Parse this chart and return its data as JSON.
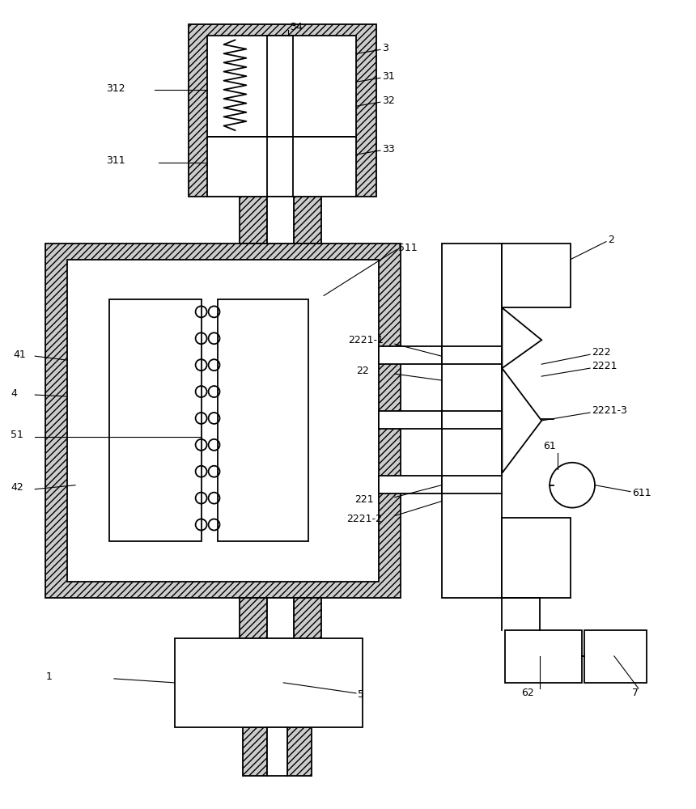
{
  "bg_color": "#ffffff",
  "line_color": "#000000",
  "hatch_color": "#aaaaaa",
  "label_color": "#000000",
  "figsize": [
    8.6,
    10.0
  ],
  "dpi": 100,
  "hatch_pattern": "////",
  "hatch_fc": "#cccccc"
}
